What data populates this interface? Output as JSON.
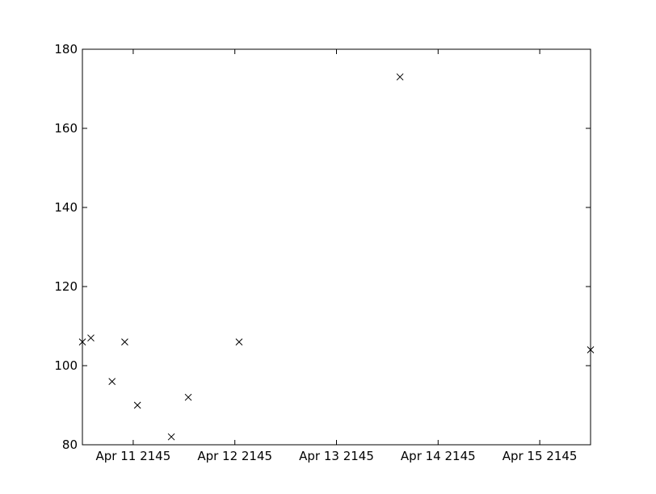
{
  "chart_data": {
    "type": "scatter",
    "title": "",
    "xlabel": "",
    "ylabel": "",
    "marker": "x",
    "marker_color": "#000000",
    "grid": false,
    "xlim": [
      "2145-04-10T12:00",
      "2145-04-15T12:00"
    ],
    "ylim": [
      80,
      180
    ],
    "x_ticks": [
      {
        "value": "2145-04-11T00:00",
        "label": "Apr 11 2145"
      },
      {
        "value": "2145-04-12T00:00",
        "label": "Apr 12 2145"
      },
      {
        "value": "2145-04-13T00:00",
        "label": "Apr 13 2145"
      },
      {
        "value": "2145-04-14T00:00",
        "label": "Apr 14 2145"
      },
      {
        "value": "2145-04-15T00:00",
        "label": "Apr 15 2145"
      }
    ],
    "y_ticks": [
      80,
      100,
      120,
      140,
      160,
      180
    ],
    "points": [
      {
        "x": "2145-04-10T12:00",
        "y": 106
      },
      {
        "x": "2145-04-10T14:00",
        "y": 107
      },
      {
        "x": "2145-04-10T19:00",
        "y": 96
      },
      {
        "x": "2145-04-10T22:00",
        "y": 106
      },
      {
        "x": "2145-04-11T01:00",
        "y": 90
      },
      {
        "x": "2145-04-11T09:00",
        "y": 82
      },
      {
        "x": "2145-04-11T13:00",
        "y": 92
      },
      {
        "x": "2145-04-12T01:00",
        "y": 106
      },
      {
        "x": "2145-04-13T15:00",
        "y": 173
      },
      {
        "x": "2145-04-15T12:00",
        "y": 104
      }
    ]
  }
}
